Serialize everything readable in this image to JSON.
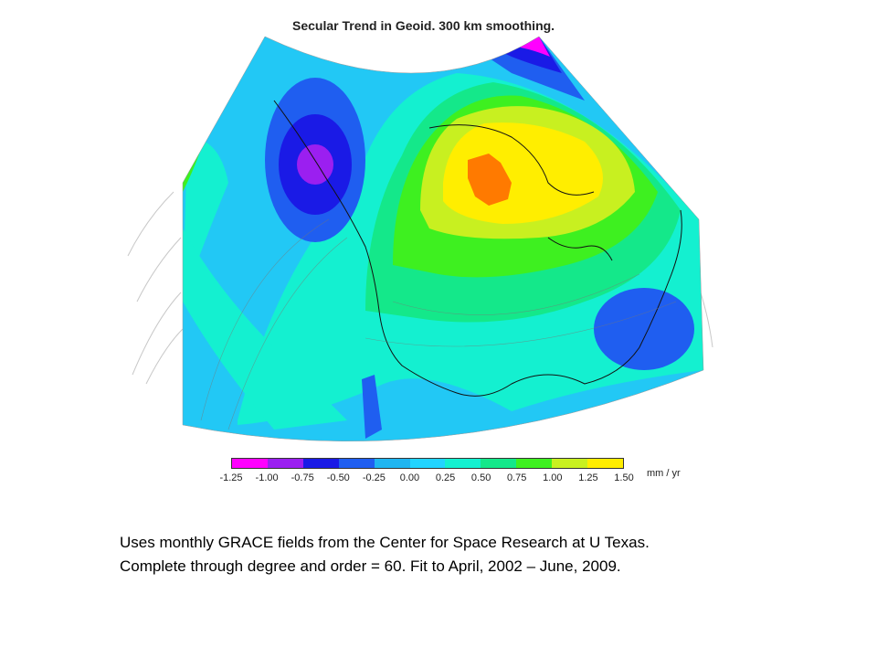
{
  "title": "Secular Trend in Geoid. 300 km smoothing.",
  "colorbar": {
    "ticks": [
      "-1.25",
      "-1.00",
      "-0.75",
      "-0.50",
      "-0.25",
      "0.00",
      "0.25",
      "0.50",
      "0.75",
      "1.00",
      "1.25",
      "1.50"
    ],
    "colors": [
      "#ff00ff",
      "#9b1ff0",
      "#1a1ae6",
      "#1f5ef0",
      "#1fb5f0",
      "#22d4ff",
      "#14f0d0",
      "#14e88a",
      "#3ef020",
      "#c8f020",
      "#ffee00",
      "#ff7a00"
    ],
    "units": "mm / yr"
  },
  "caption": {
    "line1": "Uses monthly GRACE fields from the Center for Space Research at U Texas.",
    "line2": "Complete through degree and order = 60.  Fit to April, 2002 – June, 2009."
  }
}
